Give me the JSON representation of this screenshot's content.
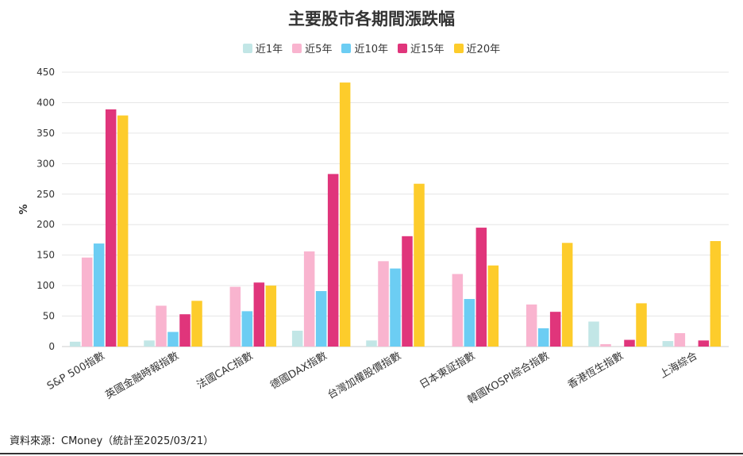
{
  "chart_data": {
    "type": "bar",
    "title": "主要股市各期間漲跌幅",
    "xlabel": "",
    "ylabel": "%",
    "ylim": [
      0,
      450
    ],
    "yticks": [
      0,
      50,
      100,
      150,
      200,
      250,
      300,
      350,
      400,
      450
    ],
    "grid": true,
    "legend_position": "top-center",
    "categories": [
      "S&P 500指數",
      "英國金融時報指數",
      "法國CAC指數",
      "德國DAX指數",
      "台灣加權股價指數",
      "日本東証指數",
      "韓國KOSPI綜合指數",
      "香港恆生指數",
      "上海綜合"
    ],
    "series": [
      {
        "name": "近1年",
        "color": "#c2e6e6",
        "values": [
          8,
          10,
          0,
          26,
          10,
          0,
          0,
          41,
          9
        ]
      },
      {
        "name": "近5年",
        "color": "#f9b4cf",
        "values": [
          146,
          67,
          98,
          156,
          140,
          119,
          69,
          4,
          22
        ]
      },
      {
        "name": "近10年",
        "color": "#6ccdf3",
        "values": [
          169,
          24,
          58,
          91,
          128,
          78,
          30,
          0,
          0
        ]
      },
      {
        "name": "近15年",
        "color": "#e0357b",
        "values": [
          389,
          53,
          105,
          283,
          181,
          195,
          57,
          11,
          10
        ]
      },
      {
        "name": "近20年",
        "color": "#fdcc2b",
        "values": [
          379,
          75,
          100,
          433,
          267,
          133,
          170,
          71,
          173
        ]
      }
    ]
  },
  "source_text": "資料來源：CMoney（統計至2025/03/21）",
  "colors": {
    "grid": "#e6e6e6",
    "axis": "#cccccc",
    "text": "#333333"
  }
}
